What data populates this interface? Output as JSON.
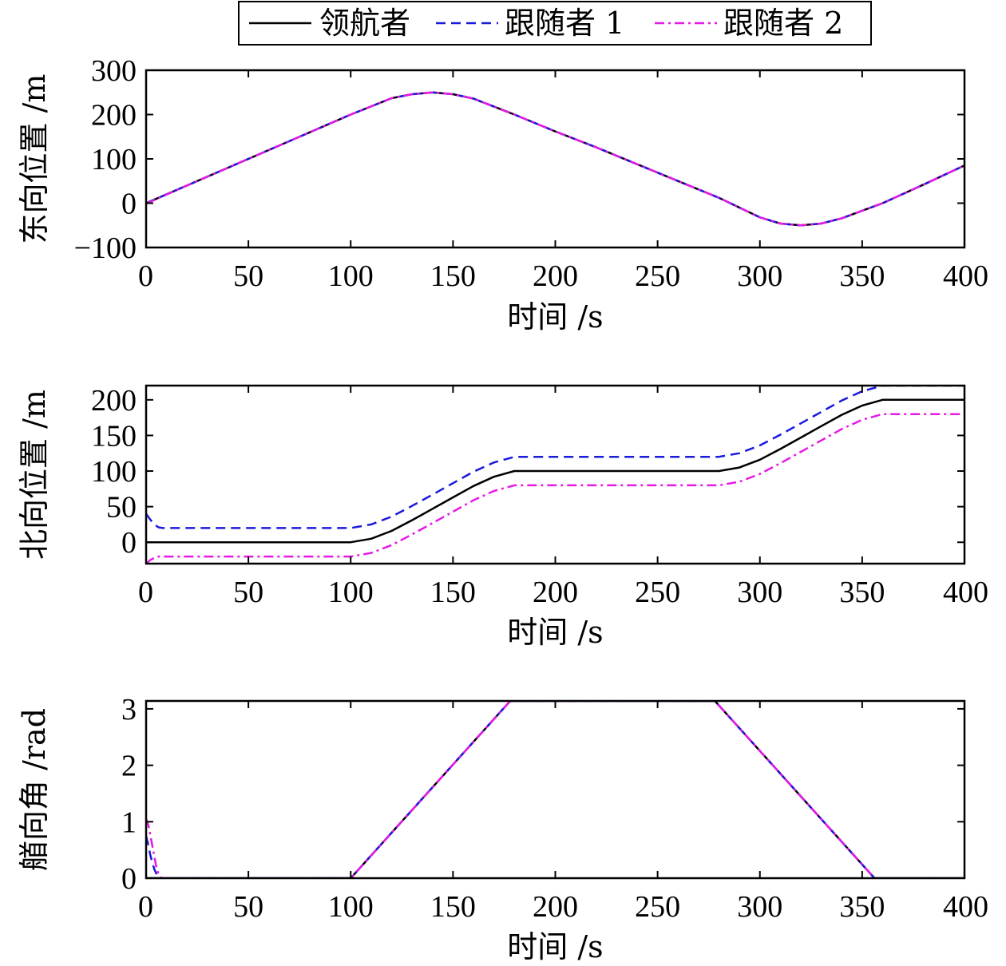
{
  "legend": {
    "entries": [
      {
        "label": "领航者",
        "color": "#000000",
        "dash": "solid"
      },
      {
        "label": "跟随者 1",
        "color": "#1a1adb",
        "dash": "dashed"
      },
      {
        "label": "跟随者 2",
        "color": "#e619e6",
        "dash": "dashdot"
      }
    ]
  },
  "chart_data": [
    {
      "type": "line",
      "xlabel": "时间 /s",
      "ylabel": "东向位置 /m",
      "xlim": [
        0,
        400
      ],
      "ylim": [
        -100,
        300
      ],
      "xticks": [
        0,
        50,
        100,
        150,
        200,
        250,
        300,
        350,
        400
      ],
      "xtick_labels": [
        "0",
        "50",
        "100",
        "150",
        "200",
        "250",
        "300",
        "350",
        "400"
      ],
      "yticks": [
        -100,
        0,
        100,
        200,
        300
      ],
      "ytick_labels": [
        "−100",
        "0",
        "100",
        "200",
        "300"
      ],
      "series": [
        {
          "name": "领航者",
          "x": [
            0,
            20,
            40,
            60,
            80,
            100,
            120,
            130,
            140,
            150,
            160,
            180,
            200,
            220,
            240,
            260,
            280,
            300,
            310,
            320,
            330,
            340,
            360,
            380,
            400
          ],
          "y": [
            0,
            40,
            80,
            120,
            160,
            200,
            237,
            246,
            250,
            246,
            236,
            200,
            162,
            126,
            88,
            50,
            12,
            -32,
            -46,
            -50,
            -46,
            -34,
            0,
            42,
            85
          ]
        },
        {
          "name": "跟随者 1",
          "x": [
            0,
            20,
            40,
            60,
            80,
            100,
            120,
            130,
            140,
            150,
            160,
            180,
            200,
            220,
            240,
            260,
            280,
            300,
            310,
            320,
            330,
            340,
            360,
            380,
            400
          ],
          "y": [
            0,
            40,
            80,
            120,
            160,
            200,
            237,
            246,
            250,
            246,
            236,
            200,
            162,
            126,
            88,
            50,
            12,
            -32,
            -46,
            -50,
            -46,
            -34,
            0,
            42,
            85
          ]
        },
        {
          "name": "跟随者 2",
          "x": [
            0,
            20,
            40,
            60,
            80,
            100,
            120,
            130,
            140,
            150,
            160,
            180,
            200,
            220,
            240,
            260,
            280,
            300,
            310,
            320,
            330,
            340,
            360,
            380,
            400
          ],
          "y": [
            -1,
            40,
            80,
            120,
            160,
            200,
            237,
            246,
            250,
            246,
            236,
            200,
            162,
            126,
            88,
            50,
            12,
            -32,
            -46,
            -50,
            -46,
            -34,
            0,
            42,
            85
          ]
        }
      ]
    },
    {
      "type": "line",
      "xlabel": "时间 /s",
      "ylabel": "北向位置 /m",
      "xlim": [
        0,
        400
      ],
      "ylim": [
        -30,
        220
      ],
      "xticks": [
        0,
        50,
        100,
        150,
        200,
        250,
        300,
        350,
        400
      ],
      "xtick_labels": [
        "0",
        "50",
        "100",
        "150",
        "200",
        "250",
        "300",
        "350",
        "400"
      ],
      "yticks": [
        0,
        50,
        100,
        150,
        200
      ],
      "ytick_labels": [
        "0",
        "50",
        "100",
        "150",
        "200"
      ],
      "series": [
        {
          "name": "领航者",
          "x": [
            0,
            100,
            110,
            120,
            130,
            140,
            150,
            160,
            170,
            180,
            280,
            290,
            300,
            310,
            320,
            330,
            340,
            350,
            360,
            400
          ],
          "y": [
            0,
            0,
            5,
            16,
            31,
            47,
            63,
            79,
            92,
            100,
            100,
            105,
            116,
            131,
            147,
            163,
            179,
            192,
            200,
            200
          ]
        },
        {
          "name": "跟随者 1",
          "x": [
            0,
            2,
            4,
            6,
            8,
            100,
            110,
            120,
            130,
            140,
            150,
            160,
            170,
            180,
            280,
            290,
            300,
            310,
            320,
            330,
            340,
            350,
            360,
            400
          ],
          "y": [
            40,
            32,
            25,
            21,
            20,
            20,
            25,
            36,
            51,
            67,
            83,
            99,
            112,
            120,
            120,
            125,
            136,
            151,
            167,
            183,
            199,
            212,
            220,
            220
          ]
        },
        {
          "name": "跟随者 2",
          "x": [
            0,
            2,
            4,
            6,
            8,
            100,
            110,
            120,
            130,
            140,
            150,
            160,
            170,
            180,
            280,
            290,
            300,
            310,
            320,
            330,
            340,
            350,
            360,
            400
          ],
          "y": [
            -30,
            -25,
            -22,
            -20,
            -20,
            -20,
            -15,
            -4,
            11,
            27,
            43,
            59,
            72,
            80,
            80,
            85,
            96,
            111,
            127,
            143,
            159,
            172,
            180,
            180
          ]
        }
      ]
    },
    {
      "type": "line",
      "xlabel": "时间 /s",
      "ylabel": "艏向角 /rad",
      "xlim": [
        0,
        400
      ],
      "ylim": [
        0,
        3.14
      ],
      "xticks": [
        0,
        50,
        100,
        150,
        200,
        250,
        300,
        350,
        400
      ],
      "xtick_labels": [
        "0",
        "50",
        "100",
        "150",
        "200",
        "250",
        "300",
        "350",
        "400"
      ],
      "yticks": [
        0,
        1,
        2,
        3
      ],
      "ytick_labels": [
        "0",
        "1",
        "2",
        "3"
      ],
      "series": [
        {
          "name": "领航者",
          "x": [
            0,
            100,
            178,
            278,
            356,
            400
          ],
          "y": [
            0,
            0,
            3.14,
            3.14,
            0,
            0
          ]
        },
        {
          "name": "跟随者 1",
          "x": [
            0,
            1,
            2,
            3,
            4,
            5,
            6,
            7,
            8,
            100,
            178,
            278,
            356,
            400
          ],
          "y": [
            0.75,
            0.6,
            0.42,
            0.28,
            0.16,
            0.08,
            0.03,
            0.01,
            0,
            0,
            3.14,
            3.14,
            0,
            0
          ]
        },
        {
          "name": "跟随者 2",
          "x": [
            0,
            1,
            2,
            3,
            4,
            5,
            6,
            7,
            8,
            100,
            178,
            278,
            356,
            400
          ],
          "y": [
            1.05,
            0.95,
            0.78,
            0.58,
            0.38,
            0.2,
            0.08,
            0.02,
            0,
            0,
            3.14,
            3.14,
            0,
            0
          ]
        }
      ]
    }
  ]
}
